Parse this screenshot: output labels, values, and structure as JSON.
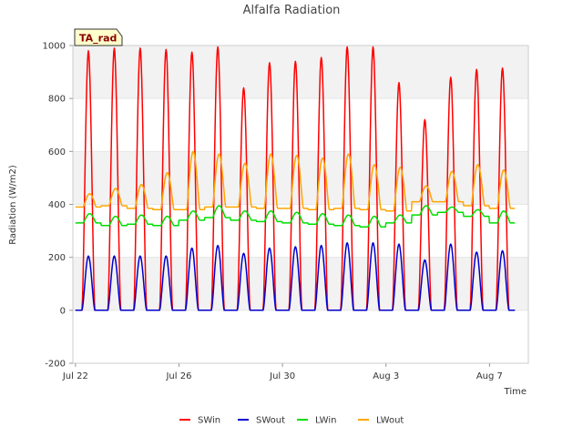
{
  "badge": "TA_rad",
  "chart_data": {
    "type": "line",
    "title": "Alfalfa Radiation",
    "xlabel": "Time",
    "ylabel": "Radiation (W/m2)",
    "ylim": [
      -200,
      1000
    ],
    "y_ticks": [
      -200,
      0,
      200,
      400,
      600,
      800,
      1000
    ],
    "x_range_days": [
      "Jul 22",
      "Aug 8"
    ],
    "x_ticks": [
      {
        "label": "Jul 22",
        "day": 0
      },
      {
        "label": "Jul 26",
        "day": 4
      },
      {
        "label": "Jul 30",
        "day": 8
      },
      {
        "label": "Aug 3",
        "day": 12
      },
      {
        "label": "Aug 7",
        "day": 16
      }
    ],
    "grid": true,
    "legend_position": "bottom",
    "days": [
      "Jul 22",
      "Jul 23",
      "Jul 24",
      "Jul 25",
      "Jul 26",
      "Jul 27",
      "Jul 28",
      "Jul 29",
      "Jul 30",
      "Jul 31",
      "Aug 1",
      "Aug 2",
      "Aug 3",
      "Aug 4",
      "Aug 5",
      "Aug 6",
      "Aug 7"
    ],
    "series": [
      {
        "name": "SWin",
        "color": "#ff0000",
        "daily_peak": [
          980,
          990,
          990,
          985,
          975,
          995,
          840,
          935,
          940,
          955,
          995,
          995,
          860,
          720,
          880,
          910,
          915
        ],
        "night": 0
      },
      {
        "name": "SWout",
        "color": "#0000cc",
        "daily_peak": [
          205,
          205,
          205,
          205,
          235,
          245,
          215,
          235,
          240,
          245,
          255,
          255,
          250,
          190,
          250,
          220,
          225
        ],
        "night": 0
      },
      {
        "name": "LWin",
        "color": "#00dd00",
        "daily_peak": [
          365,
          355,
          360,
          355,
          375,
          395,
          375,
          375,
          370,
          365,
          360,
          355,
          360,
          395,
          390,
          380,
          375
        ],
        "night": [
          330,
          320,
          325,
          320,
          340,
          350,
          340,
          335,
          330,
          325,
          320,
          315,
          330,
          360,
          370,
          355,
          330
        ]
      },
      {
        "name": "LWout",
        "color": "#ffa500",
        "daily_peak": [
          440,
          460,
          475,
          520,
          600,
          590,
          555,
          590,
          585,
          575,
          590,
          550,
          540,
          470,
          525,
          550,
          530
        ],
        "night": [
          390,
          395,
          385,
          380,
          380,
          390,
          390,
          385,
          385,
          380,
          385,
          380,
          375,
          410,
          410,
          395,
          385
        ]
      }
    ]
  }
}
